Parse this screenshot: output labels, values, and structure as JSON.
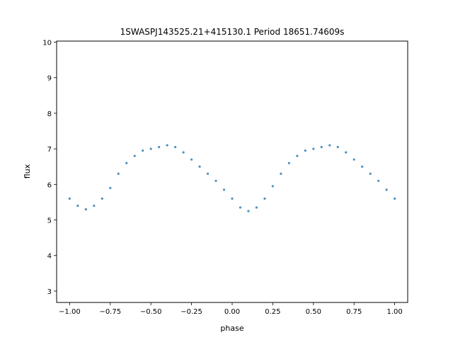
{
  "chart_data": {
    "type": "scatter",
    "title": "1SWASPJ143525.21+415130.1 Period 18651.74609s",
    "xlabel": "phase",
    "ylabel": "flux",
    "xlim": [
      -1.08,
      1.08
    ],
    "ylim": [
      2.68,
      10.03
    ],
    "xticks": [
      {
        "value": -1.0,
        "label": "−1.00"
      },
      {
        "value": -0.75,
        "label": "−0.75"
      },
      {
        "value": -0.5,
        "label": "−0.50"
      },
      {
        "value": -0.25,
        "label": "−0.25"
      },
      {
        "value": 0.0,
        "label": "0.00"
      },
      {
        "value": 0.25,
        "label": "0.25"
      },
      {
        "value": 0.5,
        "label": "0.50"
      },
      {
        "value": 0.75,
        "label": "0.75"
      },
      {
        "value": 1.0,
        "label": "1.00"
      }
    ],
    "yticks": [
      {
        "value": 3,
        "label": "3"
      },
      {
        "value": 4,
        "label": "4"
      },
      {
        "value": 5,
        "label": "5"
      },
      {
        "value": 6,
        "label": "6"
      },
      {
        "value": 7,
        "label": "7"
      },
      {
        "value": 8,
        "label": "8"
      },
      {
        "value": 9,
        "label": "9"
      },
      {
        "value": 10,
        "label": "10"
      }
    ],
    "grid": false,
    "point_color": "#1f77b4",
    "series": [
      {
        "x": [
          -1.0,
          -0.95,
          -0.9,
          -0.85,
          -0.8,
          -0.75,
          -0.7,
          -0.65,
          -0.6,
          -0.55,
          -0.5,
          -0.45,
          -0.4,
          -0.35,
          -0.3,
          -0.25,
          -0.2,
          -0.15,
          -0.1,
          -0.05,
          0.0,
          0.05,
          0.1,
          0.15,
          0.2,
          0.25,
          0.3,
          0.35,
          0.4,
          0.45,
          0.5,
          0.55,
          0.6,
          0.65,
          0.7,
          0.75,
          0.8,
          0.85,
          0.9,
          0.95,
          1.0
        ],
        "y": [
          5.6,
          5.4,
          5.3,
          5.4,
          5.6,
          5.9,
          6.3,
          6.6,
          6.8,
          6.95,
          7.0,
          7.05,
          7.1,
          7.05,
          6.9,
          6.7,
          6.5,
          6.3,
          6.1,
          5.85,
          5.6,
          5.35,
          5.25,
          5.35,
          5.6,
          5.95,
          6.3,
          6.6,
          6.8,
          6.95,
          7.0,
          7.05,
          7.1,
          7.05,
          6.9,
          6.7,
          6.5,
          6.3,
          6.1,
          5.85,
          5.6
        ]
      }
    ]
  }
}
